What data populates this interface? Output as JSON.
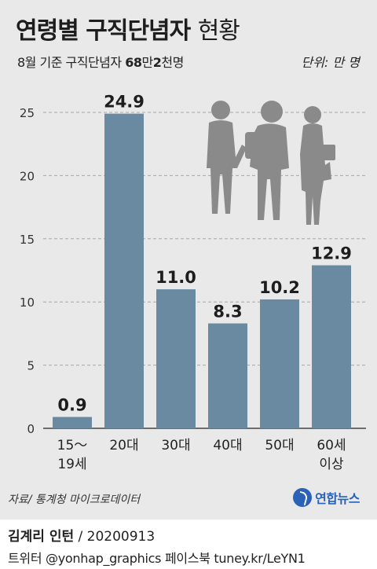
{
  "header": {
    "title_bold": "연령별 구직단념자",
    "title_light": "현황",
    "subtitle_prefix": "8월 기준 구직단념자",
    "subtitle_bold1": "68",
    "subtitle_mid": "만",
    "subtitle_bold2": "2",
    "subtitle_suffix": "천명",
    "unit": "단위: 만 명"
  },
  "chart_data": {
    "type": "bar",
    "categories": [
      [
        "15～",
        "19세"
      ],
      [
        "20대"
      ],
      [
        "30대"
      ],
      [
        "40대"
      ],
      [
        "50대"
      ],
      [
        "60세",
        "이상"
      ]
    ],
    "values": [
      0.9,
      24.9,
      11.0,
      8.3,
      10.2,
      12.9
    ],
    "value_labels": [
      "0.9",
      "24.9",
      "11.0",
      "8.3",
      "10.2",
      "12.9"
    ],
    "y_ticks": [
      "0",
      "5",
      "10",
      "15",
      "20",
      "25"
    ],
    "y_tick_values": [
      0,
      5,
      10,
      15,
      20,
      25
    ],
    "ylim": [
      0,
      25
    ],
    "grid": true,
    "bar_color": "#6a8aa1",
    "illustration": "job-seekers-silhouette-icon"
  },
  "footer": {
    "source": "자료/ 통계청 마이크로데이터",
    "brand": "연합뉴스",
    "author": "김계리 인턴",
    "date": " / 20200913",
    "social": "트위터 @yonhap_graphics  페이스북 tuney.kr/LeYN1"
  }
}
